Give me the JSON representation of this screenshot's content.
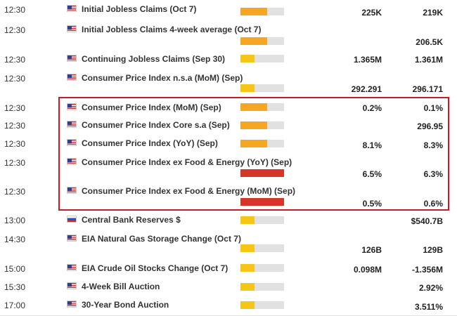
{
  "colors": {
    "importance_medium": "#f5a623",
    "importance_low": "#f5c518",
    "importance_high": "#d6362a",
    "highlight_border": "#c51b2a"
  },
  "events": [
    {
      "time": "12:30",
      "country": "US",
      "flag_icon": "us-flag-icon",
      "name": "Initial Jobless Claims (Oct 7)",
      "importance": "medium",
      "col1": "225K",
      "col2": "219K"
    },
    {
      "time": "12:30",
      "country": "US",
      "flag_icon": "us-flag-icon",
      "name": "Initial Jobless Claims 4-week average (Oct 7)",
      "importance": "medium",
      "col1": "",
      "col2": "206.5K"
    },
    {
      "time": "12:30",
      "country": "US",
      "flag_icon": "us-flag-icon",
      "name": "Continuing Jobless Claims (Sep 30)",
      "importance": "low",
      "col1": "1.365M",
      "col2": "1.361M"
    },
    {
      "time": "12:30",
      "country": "US",
      "flag_icon": "us-flag-icon",
      "name": "Consumer Price Index n.s.a (MoM) (Sep)",
      "importance": "low",
      "col1": "292.291",
      "col2": "296.171"
    },
    {
      "time": "12:30",
      "country": "US",
      "flag_icon": "us-flag-icon",
      "name": "Consumer Price Index (MoM) (Sep)",
      "importance": "medium",
      "col1": "0.2%",
      "col2": "0.1%"
    },
    {
      "time": "12:30",
      "country": "US",
      "flag_icon": "us-flag-icon",
      "name": "Consumer Price Index Core s.a (Sep)",
      "importance": "medium",
      "col1": "",
      "col2": "296.95"
    },
    {
      "time": "12:30",
      "country": "US",
      "flag_icon": "us-flag-icon",
      "name": "Consumer Price Index (YoY) (Sep)",
      "importance": "medium",
      "col1": "8.1%",
      "col2": "8.3%"
    },
    {
      "time": "12:30",
      "country": "US",
      "flag_icon": "us-flag-icon",
      "name": "Consumer Price Index ex Food & Energy (YoY) (Sep)",
      "importance": "high",
      "col1": "6.5%",
      "col2": "6.3%"
    },
    {
      "time": "12:30",
      "country": "US",
      "flag_icon": "us-flag-icon",
      "name": "Consumer Price Index ex Food & Energy (MoM) (Sep)",
      "importance": "high",
      "col1": "0.5%",
      "col2": "0.6%"
    },
    {
      "time": "13:00",
      "country": "RU",
      "flag_icon": "ru-flag-icon",
      "name": "Central Bank Reserves $",
      "importance": "low",
      "col1": "",
      "col2": "$540.7B"
    },
    {
      "time": "14:30",
      "country": "US",
      "flag_icon": "us-flag-icon",
      "name": "EIA Natural Gas Storage Change (Oct 7)",
      "importance": "low",
      "col1": "126B",
      "col2": "129B"
    },
    {
      "time": "15:00",
      "country": "US",
      "flag_icon": "us-flag-icon",
      "name": "EIA Crude Oil Stocks Change (Oct 7)",
      "importance": "low",
      "col1": "0.098M",
      "col2": "-1.356M"
    },
    {
      "time": "15:30",
      "country": "US",
      "flag_icon": "us-flag-icon",
      "name": "4-Week Bill Auction",
      "importance": "low",
      "col1": "",
      "col2": "2.92%"
    },
    {
      "time": "17:00",
      "country": "US",
      "flag_icon": "us-flag-icon",
      "name": "30-Year Bond Auction",
      "importance": "low",
      "col1": "",
      "col2": "3.511%"
    }
  ]
}
